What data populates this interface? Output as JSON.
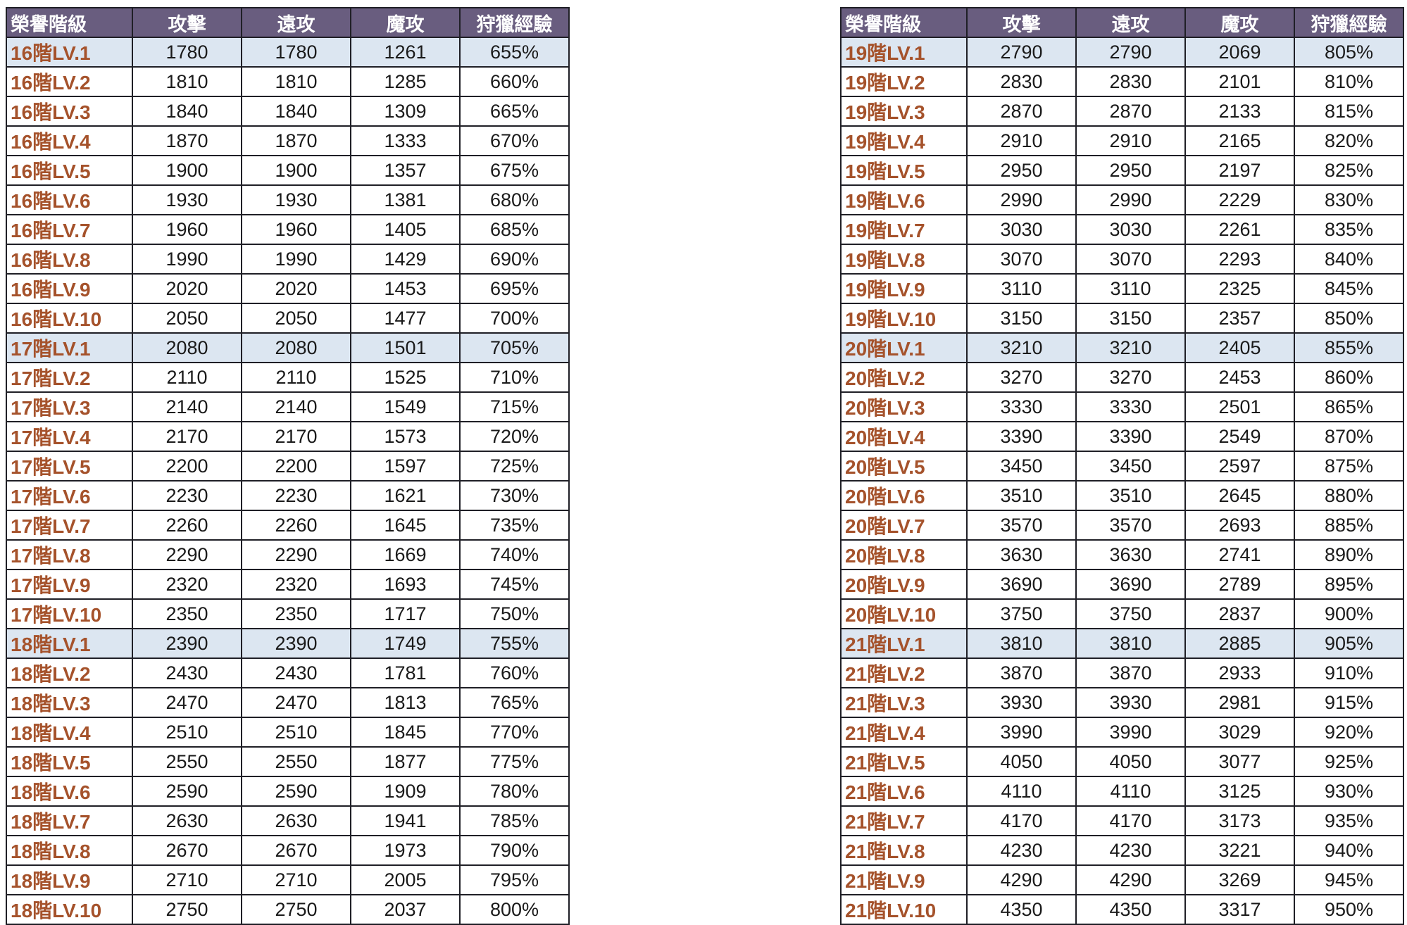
{
  "columns": [
    "榮譽階級",
    "攻擊",
    "遠攻",
    "魔攻",
    "狩獵經驗"
  ],
  "colors": {
    "header_bg": "#695D7F",
    "header_text": "#FFFFFF",
    "rank_text": "#A5522B",
    "value_text": "#1A1A1A",
    "highlight_row_bg": "#DCE6F1",
    "row_bg": "#FFFFFF",
    "border": "#1F1F26"
  },
  "tables": [
    {
      "id": "left",
      "rows": [
        {
          "rank": "16階LV.1",
          "values": [
            "1780",
            "1780",
            "1261",
            "655%"
          ],
          "highlight": true
        },
        {
          "rank": "16階LV.2",
          "values": [
            "1810",
            "1810",
            "1285",
            "660%"
          ],
          "highlight": false
        },
        {
          "rank": "16階LV.3",
          "values": [
            "1840",
            "1840",
            "1309",
            "665%"
          ],
          "highlight": false
        },
        {
          "rank": "16階LV.4",
          "values": [
            "1870",
            "1870",
            "1333",
            "670%"
          ],
          "highlight": false
        },
        {
          "rank": "16階LV.5",
          "values": [
            "1900",
            "1900",
            "1357",
            "675%"
          ],
          "highlight": false
        },
        {
          "rank": "16階LV.6",
          "values": [
            "1930",
            "1930",
            "1381",
            "680%"
          ],
          "highlight": false
        },
        {
          "rank": "16階LV.7",
          "values": [
            "1960",
            "1960",
            "1405",
            "685%"
          ],
          "highlight": false
        },
        {
          "rank": "16階LV.8",
          "values": [
            "1990",
            "1990",
            "1429",
            "690%"
          ],
          "highlight": false
        },
        {
          "rank": "16階LV.9",
          "values": [
            "2020",
            "2020",
            "1453",
            "695%"
          ],
          "highlight": false
        },
        {
          "rank": "16階LV.10",
          "values": [
            "2050",
            "2050",
            "1477",
            "700%"
          ],
          "highlight": false
        },
        {
          "rank": "17階LV.1",
          "values": [
            "2080",
            "2080",
            "1501",
            "705%"
          ],
          "highlight": true
        },
        {
          "rank": "17階LV.2",
          "values": [
            "2110",
            "2110",
            "1525",
            "710%"
          ],
          "highlight": false
        },
        {
          "rank": "17階LV.3",
          "values": [
            "2140",
            "2140",
            "1549",
            "715%"
          ],
          "highlight": false
        },
        {
          "rank": "17階LV.4",
          "values": [
            "2170",
            "2170",
            "1573",
            "720%"
          ],
          "highlight": false
        },
        {
          "rank": "17階LV.5",
          "values": [
            "2200",
            "2200",
            "1597",
            "725%"
          ],
          "highlight": false
        },
        {
          "rank": "17階LV.6",
          "values": [
            "2230",
            "2230",
            "1621",
            "730%"
          ],
          "highlight": false
        },
        {
          "rank": "17階LV.7",
          "values": [
            "2260",
            "2260",
            "1645",
            "735%"
          ],
          "highlight": false
        },
        {
          "rank": "17階LV.8",
          "values": [
            "2290",
            "2290",
            "1669",
            "740%"
          ],
          "highlight": false
        },
        {
          "rank": "17階LV.9",
          "values": [
            "2320",
            "2320",
            "1693",
            "745%"
          ],
          "highlight": false
        },
        {
          "rank": "17階LV.10",
          "values": [
            "2350",
            "2350",
            "1717",
            "750%"
          ],
          "highlight": false
        },
        {
          "rank": "18階LV.1",
          "values": [
            "2390",
            "2390",
            "1749",
            "755%"
          ],
          "highlight": true
        },
        {
          "rank": "18階LV.2",
          "values": [
            "2430",
            "2430",
            "1781",
            "760%"
          ],
          "highlight": false
        },
        {
          "rank": "18階LV.3",
          "values": [
            "2470",
            "2470",
            "1813",
            "765%"
          ],
          "highlight": false
        },
        {
          "rank": "18階LV.4",
          "values": [
            "2510",
            "2510",
            "1845",
            "770%"
          ],
          "highlight": false
        },
        {
          "rank": "18階LV.5",
          "values": [
            "2550",
            "2550",
            "1877",
            "775%"
          ],
          "highlight": false
        },
        {
          "rank": "18階LV.6",
          "values": [
            "2590",
            "2590",
            "1909",
            "780%"
          ],
          "highlight": false
        },
        {
          "rank": "18階LV.7",
          "values": [
            "2630",
            "2630",
            "1941",
            "785%"
          ],
          "highlight": false
        },
        {
          "rank": "18階LV.8",
          "values": [
            "2670",
            "2670",
            "1973",
            "790%"
          ],
          "highlight": false
        },
        {
          "rank": "18階LV.9",
          "values": [
            "2710",
            "2710",
            "2005",
            "795%"
          ],
          "highlight": false
        },
        {
          "rank": "18階LV.10",
          "values": [
            "2750",
            "2750",
            "2037",
            "800%"
          ],
          "highlight": false
        }
      ]
    },
    {
      "id": "right",
      "rows": [
        {
          "rank": "19階LV.1",
          "values": [
            "2790",
            "2790",
            "2069",
            "805%"
          ],
          "highlight": true
        },
        {
          "rank": "19階LV.2",
          "values": [
            "2830",
            "2830",
            "2101",
            "810%"
          ],
          "highlight": false
        },
        {
          "rank": "19階LV.3",
          "values": [
            "2870",
            "2870",
            "2133",
            "815%"
          ],
          "highlight": false
        },
        {
          "rank": "19階LV.4",
          "values": [
            "2910",
            "2910",
            "2165",
            "820%"
          ],
          "highlight": false
        },
        {
          "rank": "19階LV.5",
          "values": [
            "2950",
            "2950",
            "2197",
            "825%"
          ],
          "highlight": false
        },
        {
          "rank": "19階LV.6",
          "values": [
            "2990",
            "2990",
            "2229",
            "830%"
          ],
          "highlight": false
        },
        {
          "rank": "19階LV.7",
          "values": [
            "3030",
            "3030",
            "2261",
            "835%"
          ],
          "highlight": false
        },
        {
          "rank": "19階LV.8",
          "values": [
            "3070",
            "3070",
            "2293",
            "840%"
          ],
          "highlight": false
        },
        {
          "rank": "19階LV.9",
          "values": [
            "3110",
            "3110",
            "2325",
            "845%"
          ],
          "highlight": false
        },
        {
          "rank": "19階LV.10",
          "values": [
            "3150",
            "3150",
            "2357",
            "850%"
          ],
          "highlight": false
        },
        {
          "rank": "20階LV.1",
          "values": [
            "3210",
            "3210",
            "2405",
            "855%"
          ],
          "highlight": true
        },
        {
          "rank": "20階LV.2",
          "values": [
            "3270",
            "3270",
            "2453",
            "860%"
          ],
          "highlight": false
        },
        {
          "rank": "20階LV.3",
          "values": [
            "3330",
            "3330",
            "2501",
            "865%"
          ],
          "highlight": false
        },
        {
          "rank": "20階LV.4",
          "values": [
            "3390",
            "3390",
            "2549",
            "870%"
          ],
          "highlight": false
        },
        {
          "rank": "20階LV.5",
          "values": [
            "3450",
            "3450",
            "2597",
            "875%"
          ],
          "highlight": false
        },
        {
          "rank": "20階LV.6",
          "values": [
            "3510",
            "3510",
            "2645",
            "880%"
          ],
          "highlight": false
        },
        {
          "rank": "20階LV.7",
          "values": [
            "3570",
            "3570",
            "2693",
            "885%"
          ],
          "highlight": false
        },
        {
          "rank": "20階LV.8",
          "values": [
            "3630",
            "3630",
            "2741",
            "890%"
          ],
          "highlight": false
        },
        {
          "rank": "20階LV.9",
          "values": [
            "3690",
            "3690",
            "2789",
            "895%"
          ],
          "highlight": false
        },
        {
          "rank": "20階LV.10",
          "values": [
            "3750",
            "3750",
            "2837",
            "900%"
          ],
          "highlight": false
        },
        {
          "rank": "21階LV.1",
          "values": [
            "3810",
            "3810",
            "2885",
            "905%"
          ],
          "highlight": true
        },
        {
          "rank": "21階LV.2",
          "values": [
            "3870",
            "3870",
            "2933",
            "910%"
          ],
          "highlight": false
        },
        {
          "rank": "21階LV.3",
          "values": [
            "3930",
            "3930",
            "2981",
            "915%"
          ],
          "highlight": false
        },
        {
          "rank": "21階LV.4",
          "values": [
            "3990",
            "3990",
            "3029",
            "920%"
          ],
          "highlight": false
        },
        {
          "rank": "21階LV.5",
          "values": [
            "4050",
            "4050",
            "3077",
            "925%"
          ],
          "highlight": false
        },
        {
          "rank": "21階LV.6",
          "values": [
            "4110",
            "4110",
            "3125",
            "930%"
          ],
          "highlight": false
        },
        {
          "rank": "21階LV.7",
          "values": [
            "4170",
            "4170",
            "3173",
            "935%"
          ],
          "highlight": false
        },
        {
          "rank": "21階LV.8",
          "values": [
            "4230",
            "4230",
            "3221",
            "940%"
          ],
          "highlight": false
        },
        {
          "rank": "21階LV.9",
          "values": [
            "4290",
            "4290",
            "3269",
            "945%"
          ],
          "highlight": false
        },
        {
          "rank": "21階LV.10",
          "values": [
            "4350",
            "4350",
            "3317",
            "950%"
          ],
          "highlight": false
        }
      ]
    }
  ]
}
